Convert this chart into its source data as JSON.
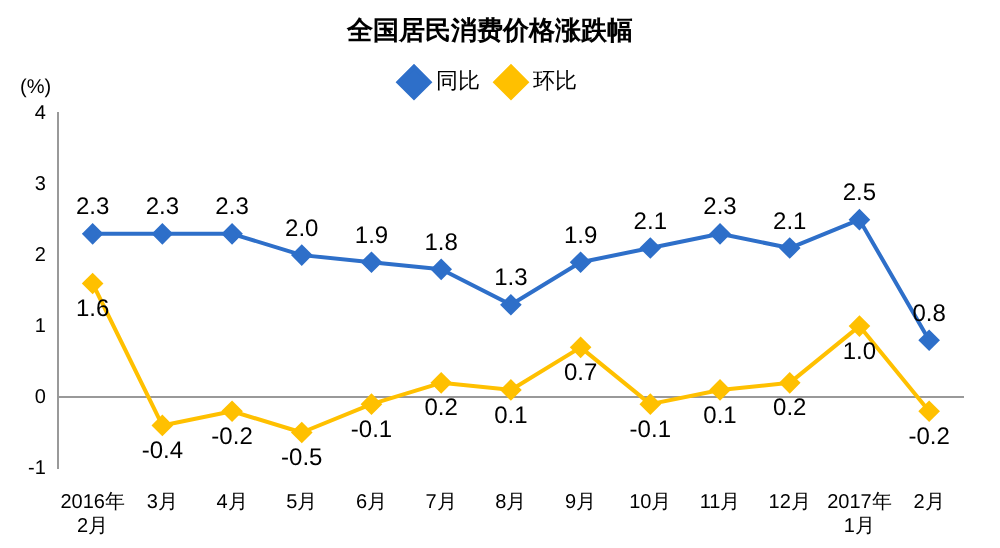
{
  "chart_data": {
    "type": "line",
    "title": "全国居民消费价格涨跌幅",
    "ylabel": "(%)",
    "categories": [
      "2016年\n2月",
      "3月",
      "4月",
      "5月",
      "6月",
      "7月",
      "8月",
      "9月",
      "10月",
      "11月",
      "12月",
      "2017年\n1月",
      "2月"
    ],
    "series": [
      {
        "name": "同比",
        "color": "#2e6fc9",
        "values": [
          2.3,
          2.3,
          2.3,
          2.0,
          1.9,
          1.8,
          1.3,
          1.9,
          2.1,
          2.3,
          2.1,
          2.5,
          0.8
        ],
        "value_labels": [
          "2.3",
          "2.3",
          "2.3",
          "2.0",
          "1.9",
          "1.8",
          "1.3",
          "1.9",
          "2.1",
          "2.3",
          "2.1",
          "2.5",
          "0.8"
        ]
      },
      {
        "name": "环比",
        "color": "#ffc000",
        "values": [
          1.6,
          -0.4,
          -0.2,
          -0.5,
          -0.1,
          0.2,
          0.1,
          0.7,
          -0.1,
          0.1,
          0.2,
          1.0,
          -0.2
        ],
        "value_labels": [
          "1.6",
          "-0.4",
          "-0.2",
          "-0.5",
          "-0.1",
          "0.2",
          "0.1",
          "0.7",
          "-0.1",
          "0.1",
          "0.2",
          "1.0",
          "-0.2"
        ]
      }
    ],
    "ylim": [
      -1,
      4
    ],
    "yticks": [
      -1,
      0,
      1,
      2,
      3,
      4
    ],
    "legend": "top",
    "marker": "diamond",
    "line_style": "solid"
  }
}
